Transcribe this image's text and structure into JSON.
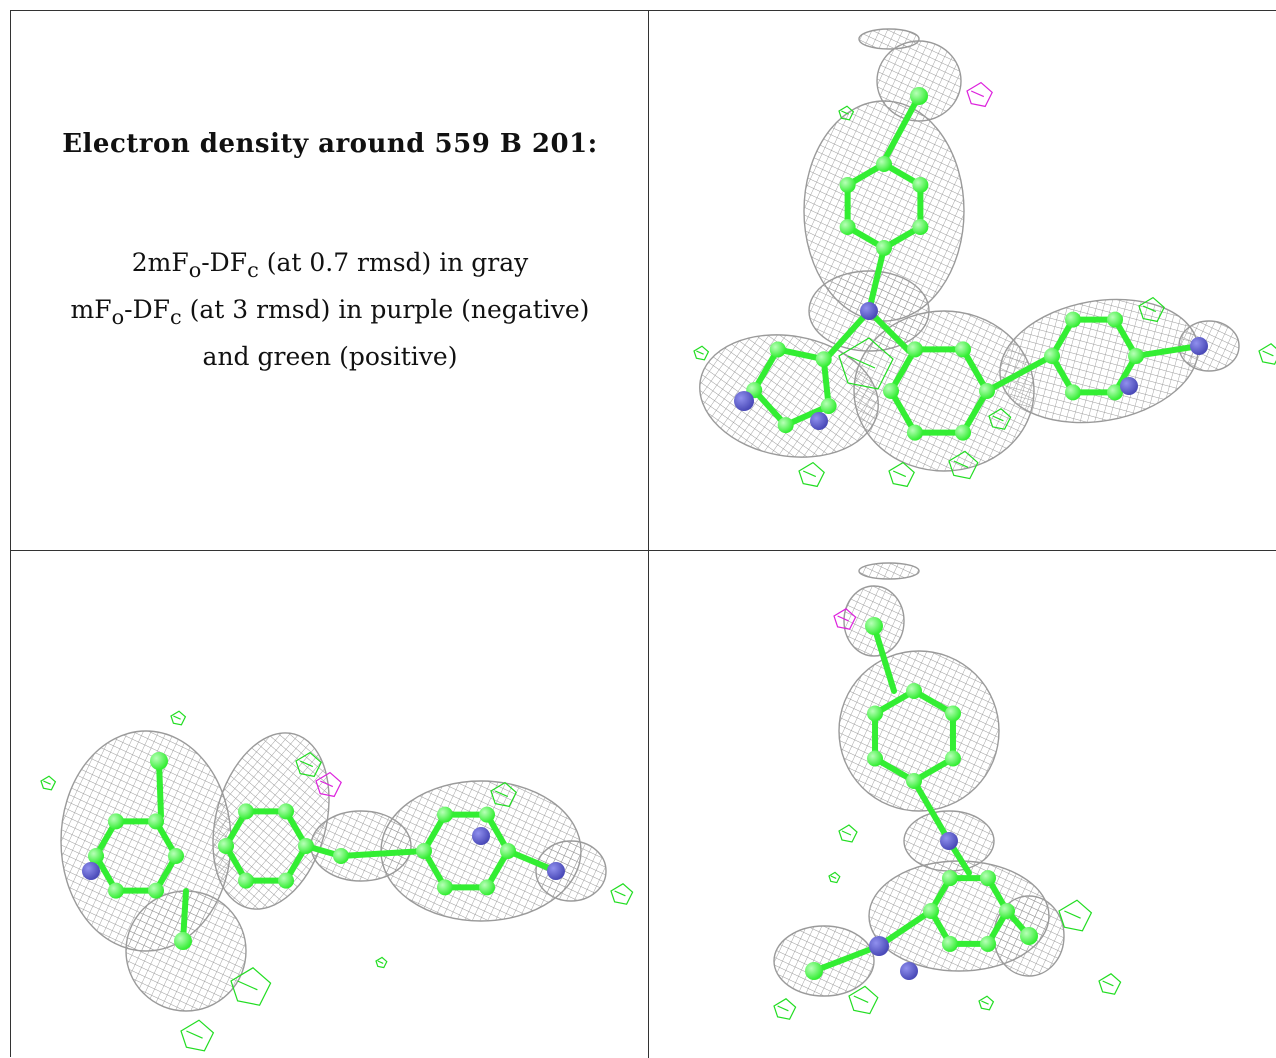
{
  "title": "Electron density around 559 B 201:",
  "legend": {
    "line1": {
      "pre": "2mF",
      "sub1": "o",
      "mid": "-DF",
      "sub2": "c",
      "post": " (at 0.7 rmsd) in gray"
    },
    "line2": {
      "pre": "mF",
      "sub1": "o",
      "mid": "-DF",
      "sub2": "c",
      "post": " (at 3 rmsd) in purple (negative)"
    },
    "line3": "and green (positive)"
  },
  "colors": {
    "mesh": "#9a9a9a",
    "carbon": "#33ee33",
    "nitrogen": "#4a4ab8",
    "positive": "#22dd22",
    "negative": "#dd22dd",
    "grid": "#333333"
  },
  "views": [
    "view-1",
    "view-2",
    "view-3"
  ]
}
